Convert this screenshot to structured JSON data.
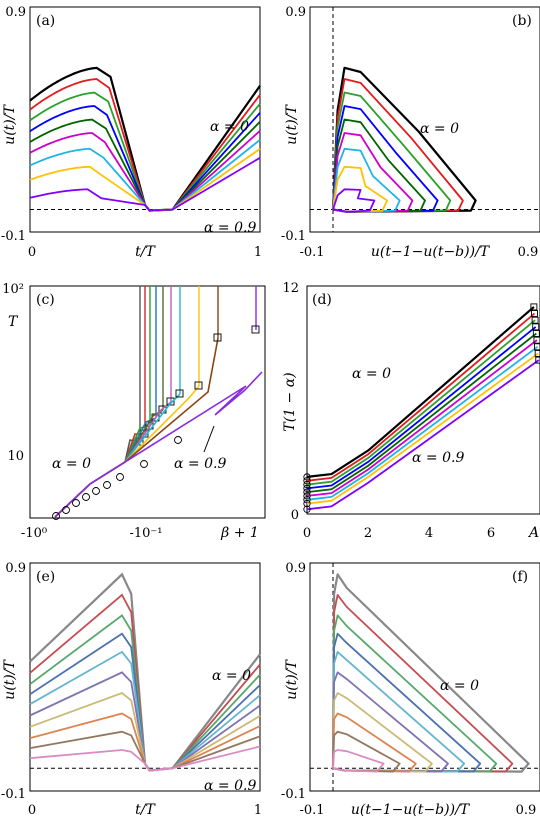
{
  "colors": {
    "palette_a": [
      "#000000",
      "#e41a1c",
      "#2ca02c",
      "#0000ff",
      "#006400",
      "#cc00cc",
      "#1fb4e6",
      "#ffc107",
      "#7f00ff"
    ],
    "palette_c": [
      "#555555",
      "#d62728",
      "#2ca02c",
      "#1f77b4",
      "#556b2f",
      "#c05cc0",
      "#17becf",
      "#ffc107",
      "#8b4513",
      "#8a2be2"
    ],
    "palette_e": [
      "#888888",
      "#c44e52",
      "#55a868",
      "#4c72b0",
      "#64b5cd",
      "#8172b2",
      "#ccb974",
      "#dd8452",
      "#937860",
      "#da8bc3"
    ]
  },
  "chart_data": [
    {
      "id": "a",
      "panel_label": "(a)",
      "type": "line",
      "xlabel": "t/T",
      "ylabel": "u(t)/T",
      "xlim": [
        0,
        1
      ],
      "ylim": [
        -0.1,
        0.9
      ],
      "xticks": [
        "0",
        "1"
      ],
      "yticks": [
        "-0.1",
        "0.9"
      ],
      "annotations": [
        "α = 0",
        "α = 0.9"
      ],
      "series": [
        {
          "alpha": 0,
          "peak": 0.63
        },
        {
          "alpha": 0.1125,
          "peak": 0.58
        },
        {
          "alpha": 0.225,
          "peak": 0.52
        },
        {
          "alpha": 0.3375,
          "peak": 0.46
        },
        {
          "alpha": 0.45,
          "peak": 0.4
        },
        {
          "alpha": 0.5625,
          "peak": 0.34
        },
        {
          "alpha": 0.675,
          "peak": 0.27
        },
        {
          "alpha": 0.7875,
          "peak": 0.19
        },
        {
          "alpha": 0.9,
          "peak": 0.09
        }
      ]
    },
    {
      "id": "b",
      "panel_label": "(b)",
      "type": "line",
      "xlabel": "u(t−1−u(t−b))/T",
      "ylabel": "u(t)/T",
      "xlim": [
        -0.1,
        0.9
      ],
      "ylim": [
        -0.1,
        0.9
      ],
      "xticks": [
        "-0.1",
        "0.9"
      ],
      "yticks": [
        "-0.1",
        "0.9"
      ],
      "annotations": [
        "α = 0"
      ]
    },
    {
      "id": "c",
      "panel_label": "(c)",
      "type": "line",
      "xlabel": "β + 1",
      "ylabel": "T",
      "xscale": "log",
      "yscale": "log",
      "xticks": [
        "-10⁰",
        "-10⁻¹"
      ],
      "yticks": [
        "10",
        "10²"
      ],
      "annotations": [
        "α = 0",
        "α = 0.9"
      ],
      "series_count": 10
    },
    {
      "id": "d",
      "panel_label": "(d)",
      "type": "line",
      "xlabel": "A",
      "ylabel": "T(1 − α)",
      "xlim": [
        0,
        7.6
      ],
      "ylim": [
        0,
        12
      ],
      "xticks": [
        "0",
        "2",
        "4",
        "6"
      ],
      "yticks": [
        "0",
        "12"
      ],
      "annotations": [
        "α = 0",
        "α = 0.9"
      ],
      "series": [
        {
          "alpha": 0,
          "start": 1.95,
          "end": 10.9
        },
        {
          "alpha": 0.1125,
          "start": 1.75,
          "end": 10.55
        },
        {
          "alpha": 0.225,
          "start": 1.55,
          "end": 10.2
        },
        {
          "alpha": 0.3375,
          "start": 1.35,
          "end": 9.85
        },
        {
          "alpha": 0.45,
          "start": 1.15,
          "end": 9.5
        },
        {
          "alpha": 0.5625,
          "start": 0.95,
          "end": 9.15
        },
        {
          "alpha": 0.675,
          "start": 0.75,
          "end": 8.8
        },
        {
          "alpha": 0.7875,
          "start": 0.55,
          "end": 8.45
        },
        {
          "alpha": 0.9,
          "start": 0.25,
          "end": 8.1
        }
      ]
    },
    {
      "id": "e",
      "panel_label": "(e)",
      "type": "line",
      "xlabel": "t/T",
      "ylabel": "u(t)/T",
      "xlim": [
        0,
        1
      ],
      "ylim": [
        -0.1,
        0.9
      ],
      "xticks": [
        "0",
        "1"
      ],
      "yticks": [
        "-0.1",
        "0.9"
      ],
      "annotations": [
        "α = 0",
        "α = 0.9"
      ],
      "series": [
        {
          "peak": 0.85
        },
        {
          "peak": 0.76
        },
        {
          "peak": 0.67
        },
        {
          "peak": 0.59
        },
        {
          "peak": 0.51
        },
        {
          "peak": 0.42
        },
        {
          "peak": 0.33
        },
        {
          "peak": 0.24
        },
        {
          "peak": 0.16
        },
        {
          "peak": 0.08
        }
      ]
    },
    {
      "id": "f",
      "panel_label": "(f)",
      "type": "line",
      "xlabel": "u(t−1−u(t−b))/T",
      "ylabel": "u(t)/T",
      "xlim": [
        -0.1,
        0.9
      ],
      "ylim": [
        -0.1,
        0.9
      ],
      "xticks": [
        "-0.1",
        "0.9"
      ],
      "yticks": [
        "0.9",
        "-0.1"
      ],
      "annotations": [
        "α = 0"
      ]
    }
  ]
}
